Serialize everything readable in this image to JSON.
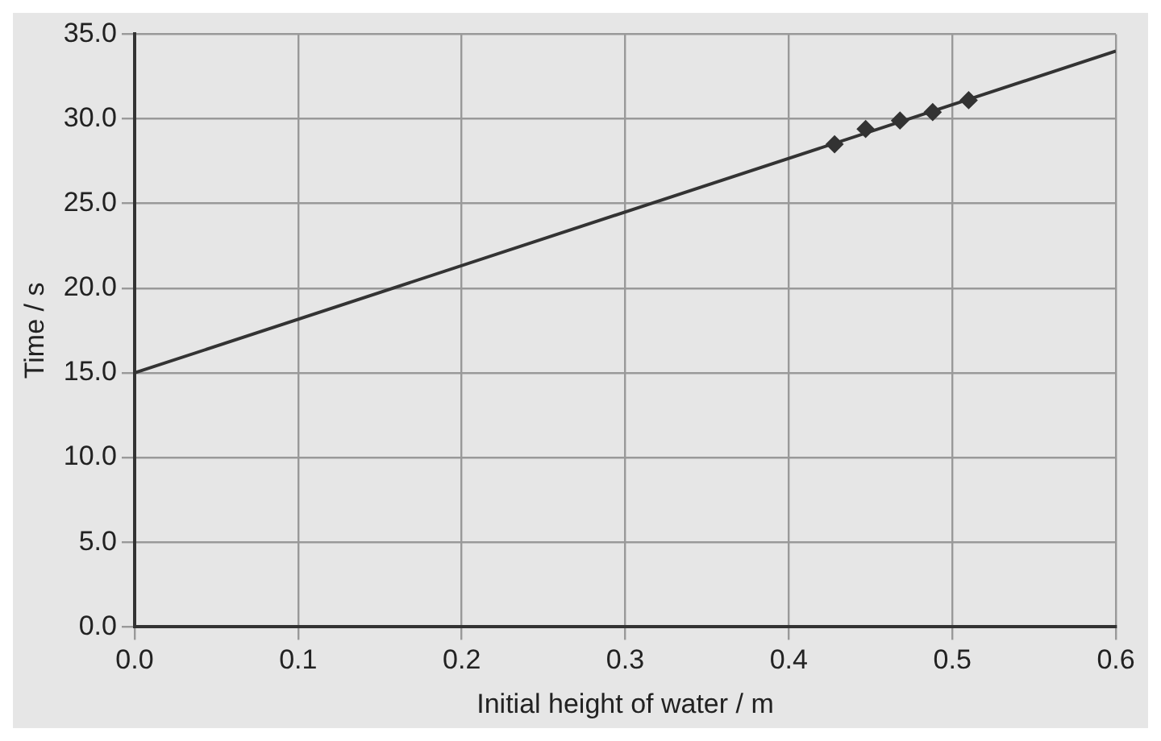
{
  "chart_data": {
    "type": "scatter",
    "xlabel": "Initial height of water / m",
    "ylabel": "Time / s",
    "xlim": [
      0,
      0.6
    ],
    "ylim": [
      0,
      35
    ],
    "xticks": [
      {
        "value": 0,
        "label": "0.0"
      },
      {
        "value": 0.1,
        "label": "0.1"
      },
      {
        "value": 0.2,
        "label": "0.2"
      },
      {
        "value": 0.3,
        "label": "0.3"
      },
      {
        "value": 0.4,
        "label": "0.4"
      },
      {
        "value": 0.5,
        "label": "0.5"
      },
      {
        "value": 0.6,
        "label": "0.6"
      }
    ],
    "yticks": [
      {
        "value": 0,
        "label": "0.0"
      },
      {
        "value": 5,
        "label": "5.0"
      },
      {
        "value": 10,
        "label": "10.0"
      },
      {
        "value": 15,
        "label": "15.0"
      },
      {
        "value": 20,
        "label": "20.0"
      },
      {
        "value": 25,
        "label": "25.0"
      },
      {
        "value": 30,
        "label": "30.0"
      },
      {
        "value": 35,
        "label": "35.0"
      }
    ],
    "grid": true,
    "legend": false,
    "marker": "diamond",
    "series": [
      {
        "color": "#333333",
        "x": [
          0.428,
          0.447,
          0.468,
          0.488,
          0.51
        ],
        "values": [
          28.5,
          29.4,
          29.9,
          30.4,
          31.1
        ]
      },
      {
        "type": "line",
        "marker": "none",
        "color": "#333333",
        "x": [
          0,
          0.6
        ],
        "values": [
          15,
          34
        ]
      }
    ]
  }
}
